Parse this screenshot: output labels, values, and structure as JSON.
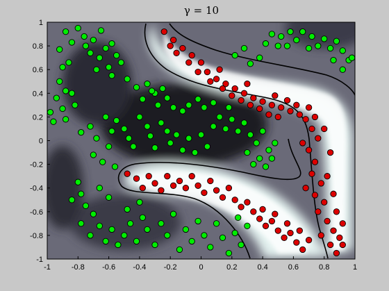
{
  "chart_data": {
    "type": "scatter",
    "title": "γ = 10",
    "xlabel": "",
    "ylabel": "",
    "xlim": [
      -1,
      1
    ],
    "ylim": [
      -1,
      1
    ],
    "xticks": [
      "-1",
      "-0.8",
      "-0.6",
      "-0.4",
      "-0.2",
      "0",
      "0.2",
      "0.4",
      "0.6",
      "0.8",
      "1"
    ],
    "yticks": [
      "1",
      "0.8",
      "0.6",
      "0.4",
      "0.2",
      "0",
      "-0.2",
      "-0.4",
      "-0.6",
      "-0.8",
      "-1"
    ],
    "grid": false,
    "legend": "none",
    "background": "decision-function shading (dark = green class, light = red class) with black decision boundary",
    "colors": {
      "class_green": "#00ee00",
      "class_red": "#dd0000",
      "edge": "#000000",
      "boundary": "#000000"
    },
    "series": [
      {
        "color": "#00ee00",
        "points": [
          [
            -0.92,
            0.77
          ],
          [
            -0.88,
            0.92
          ],
          [
            -0.84,
            0.83
          ],
          [
            -0.8,
            0.95
          ],
          [
            -0.76,
            0.88
          ],
          [
            -0.7,
            0.85
          ],
          [
            -0.65,
            0.93
          ],
          [
            -0.62,
            0.78
          ],
          [
            -0.58,
            0.82
          ],
          [
            -0.55,
            0.72
          ],
          [
            -0.52,
            0.66
          ],
          [
            -0.6,
            0.62
          ],
          [
            -0.66,
            0.7
          ],
          [
            -0.72,
            0.74
          ],
          [
            -0.68,
            0.6
          ],
          [
            -0.75,
            0.8
          ],
          [
            -0.9,
            0.62
          ],
          [
            -0.86,
            0.66
          ],
          [
            -0.92,
            0.5
          ],
          [
            -0.88,
            0.42
          ],
          [
            -0.94,
            0.36
          ],
          [
            -0.84,
            0.4
          ],
          [
            -0.82,
            0.3
          ],
          [
            -0.9,
            0.27
          ],
          [
            -0.98,
            0.24
          ],
          [
            -0.96,
            0.16
          ],
          [
            -0.88,
            0.18
          ],
          [
            -0.58,
            0.55
          ],
          [
            -0.48,
            0.52
          ],
          [
            -0.42,
            0.45
          ],
          [
            -0.35,
            0.48
          ],
          [
            -0.3,
            0.4
          ],
          [
            -0.38,
            0.35
          ],
          [
            -0.28,
            0.3
          ],
          [
            -0.22,
            0.36
          ],
          [
            -0.18,
            0.28
          ],
          [
            -0.12,
            0.25
          ],
          [
            -0.08,
            0.3
          ],
          [
            -0.02,
            0.35
          ],
          [
            0.02,
            0.28
          ],
          [
            -0.32,
            0.42
          ],
          [
            -0.25,
            0.44
          ],
          [
            -0.78,
            0.07
          ],
          [
            -0.72,
            0.12
          ],
          [
            -0.68,
            0.02
          ],
          [
            -0.62,
            0.2
          ],
          [
            -0.58,
            0.08
          ],
          [
            -0.55,
            0.17
          ],
          [
            -0.6,
            -0.05
          ],
          [
            -0.5,
            0.1
          ],
          [
            -0.47,
            0.02
          ],
          [
            -0.44,
            -0.05
          ],
          [
            -0.4,
            0.2
          ],
          [
            -0.35,
            0.12
          ],
          [
            -0.33,
            0.04
          ],
          [
            -0.3,
            -0.06
          ],
          [
            -0.26,
            0.15
          ],
          [
            -0.22,
            0.08
          ],
          [
            -0.2,
            -0.02
          ],
          [
            -0.16,
            0.05
          ],
          [
            -0.12,
            -0.08
          ],
          [
            -0.08,
            0.02
          ],
          [
            -0.04,
            -0.1
          ],
          [
            0.0,
            0.05
          ],
          [
            0.04,
            -0.05
          ],
          [
            0.08,
            0.12
          ],
          [
            0.12,
            0.2
          ],
          [
            0.16,
            0.1
          ],
          [
            0.2,
            0.18
          ],
          [
            0.24,
            0.08
          ],
          [
            0.28,
            0.15
          ],
          [
            0.32,
            0.05
          ],
          [
            0.36,
            -0.02
          ],
          [
            0.4,
            0.08
          ],
          [
            0.44,
            -0.08
          ],
          [
            0.48,
            -0.02
          ],
          [
            0.38,
            -0.15
          ],
          [
            0.34,
            -0.2
          ],
          [
            0.42,
            -0.22
          ],
          [
            0.46,
            -0.15
          ],
          [
            0.3,
            -0.1
          ],
          [
            0.18,
            0.28
          ],
          [
            0.08,
            0.32
          ],
          [
            -0.64,
            -0.18
          ],
          [
            -0.56,
            -0.22
          ],
          [
            -0.7,
            -0.12
          ],
          [
            -0.8,
            -0.35
          ],
          [
            -0.78,
            -0.45
          ],
          [
            -0.84,
            -0.5
          ],
          [
            -0.75,
            -0.55
          ],
          [
            -0.7,
            -0.62
          ],
          [
            -0.78,
            -0.7
          ],
          [
            -0.72,
            -0.8
          ],
          [
            -0.66,
            -0.72
          ],
          [
            -0.62,
            -0.85
          ],
          [
            -0.58,
            -0.75
          ],
          [
            -0.54,
            -0.88
          ],
          [
            -0.5,
            -0.8
          ],
          [
            -0.46,
            -0.7
          ],
          [
            -0.42,
            -0.85
          ],
          [
            -0.38,
            -0.65
          ],
          [
            -0.35,
            -0.75
          ],
          [
            -0.3,
            -0.88
          ],
          [
            -0.26,
            -0.7
          ],
          [
            -0.22,
            -0.8
          ],
          [
            -0.18,
            -0.62
          ],
          [
            -0.14,
            -0.92
          ],
          [
            -0.1,
            -0.75
          ],
          [
            -0.06,
            -0.85
          ],
          [
            -0.02,
            -0.68
          ],
          [
            0.02,
            -0.8
          ],
          [
            0.06,
            -0.9
          ],
          [
            0.1,
            -0.7
          ],
          [
            0.14,
            -0.82
          ],
          [
            0.18,
            -0.95
          ],
          [
            0.22,
            -0.78
          ],
          [
            0.26,
            -0.88
          ],
          [
            0.3,
            -0.72
          ],
          [
            0.24,
            -0.65
          ],
          [
            -0.48,
            -0.58
          ],
          [
            -0.4,
            -0.52
          ],
          [
            -0.66,
            -0.4
          ],
          [
            -0.6,
            -0.48
          ],
          [
            0.22,
            0.72
          ],
          [
            0.28,
            0.78
          ],
          [
            0.32,
            0.65
          ],
          [
            0.38,
            0.7
          ],
          [
            0.46,
            0.9
          ],
          [
            0.52,
            0.88
          ],
          [
            0.56,
            0.8
          ],
          [
            0.62,
            0.85
          ],
          [
            0.66,
            0.92
          ],
          [
            0.72,
            0.88
          ],
          [
            0.76,
            0.8
          ],
          [
            0.8,
            0.86
          ],
          [
            0.84,
            0.78
          ],
          [
            0.88,
            0.84
          ],
          [
            0.92,
            0.76
          ],
          [
            0.96,
            0.68
          ],
          [
            0.92,
            0.6
          ],
          [
            0.98,
            0.7
          ],
          [
            0.86,
            0.68
          ],
          [
            0.7,
            0.78
          ],
          [
            0.58,
            0.92
          ],
          [
            0.5,
            0.8
          ],
          [
            0.42,
            0.82
          ]
        ]
      },
      {
        "color": "#dd0000",
        "points": [
          [
            -0.24,
            0.92
          ],
          [
            -0.18,
            0.85
          ],
          [
            -0.12,
            0.78
          ],
          [
            -0.06,
            0.72
          ],
          [
            0.0,
            0.66
          ],
          [
            0.04,
            0.58
          ],
          [
            0.1,
            0.52
          ],
          [
            0.16,
            0.48
          ],
          [
            0.22,
            0.44
          ],
          [
            0.28,
            0.4
          ],
          [
            0.34,
            0.36
          ],
          [
            0.4,
            0.33
          ],
          [
            0.46,
            0.3
          ],
          [
            0.52,
            0.28
          ],
          [
            0.58,
            0.25
          ],
          [
            0.64,
            0.22
          ],
          [
            -0.16,
            0.74
          ],
          [
            -0.08,
            0.66
          ],
          [
            -0.02,
            0.58
          ],
          [
            0.06,
            0.5
          ],
          [
            0.14,
            0.44
          ],
          [
            0.2,
            0.38
          ],
          [
            0.26,
            0.34
          ],
          [
            0.32,
            0.3
          ],
          [
            0.38,
            0.27
          ],
          [
            0.44,
            0.22
          ],
          [
            0.5,
            0.2
          ],
          [
            -0.2,
            0.8
          ],
          [
            0.12,
            0.6
          ],
          [
            0.3,
            0.48
          ],
          [
            0.48,
            0.38
          ],
          [
            0.56,
            0.34
          ],
          [
            0.62,
            0.3
          ],
          [
            0.7,
            0.28
          ],
          [
            0.74,
            0.2
          ],
          [
            0.72,
            0.1
          ],
          [
            0.76,
            0.02
          ],
          [
            0.7,
            -0.08
          ],
          [
            0.74,
            -0.18
          ],
          [
            0.72,
            -0.28
          ],
          [
            0.78,
            -0.36
          ],
          [
            0.74,
            -0.46
          ],
          [
            0.8,
            -0.52
          ],
          [
            0.76,
            -0.6
          ],
          [
            0.82,
            -0.68
          ],
          [
            0.86,
            -0.76
          ],
          [
            0.9,
            -0.82
          ],
          [
            0.84,
            -0.88
          ],
          [
            0.88,
            -0.95
          ],
          [
            0.92,
            -0.88
          ],
          [
            0.8,
            0.1
          ],
          [
            0.84,
            -0.1
          ],
          [
            0.82,
            -0.3
          ],
          [
            0.86,
            -0.45
          ],
          [
            0.88,
            -0.6
          ],
          [
            0.92,
            -0.7
          ],
          [
            0.78,
            -0.8
          ],
          [
            0.68,
            0.18
          ],
          [
            0.66,
            -0.02
          ],
          [
            0.68,
            -0.4
          ],
          [
            -0.48,
            -0.28
          ],
          [
            -0.42,
            -0.32
          ],
          [
            -0.38,
            -0.4
          ],
          [
            -0.34,
            -0.3
          ],
          [
            -0.3,
            -0.36
          ],
          [
            -0.26,
            -0.42
          ],
          [
            -0.22,
            -0.3
          ],
          [
            -0.18,
            -0.38
          ],
          [
            -0.14,
            -0.34
          ],
          [
            -0.1,
            -0.4
          ],
          [
            -0.06,
            -0.3
          ],
          [
            -0.02,
            -0.38
          ],
          [
            0.02,
            -0.44
          ],
          [
            0.06,
            -0.34
          ],
          [
            0.1,
            -0.42
          ],
          [
            0.14,
            -0.48
          ],
          [
            0.18,
            -0.4
          ],
          [
            0.22,
            -0.5
          ],
          [
            0.26,
            -0.56
          ],
          [
            0.3,
            -0.52
          ],
          [
            0.34,
            -0.6
          ],
          [
            0.38,
            -0.66
          ],
          [
            0.42,
            -0.72
          ],
          [
            0.46,
            -0.68
          ],
          [
            0.5,
            -0.76
          ],
          [
            0.54,
            -0.82
          ],
          [
            0.58,
            -0.78
          ],
          [
            0.62,
            -0.86
          ],
          [
            0.66,
            -0.92
          ],
          [
            0.4,
            -0.58
          ],
          [
            0.48,
            -0.62
          ],
          [
            0.56,
            -0.7
          ],
          [
            0.64,
            -0.76
          ],
          [
            0.7,
            -0.84
          ]
        ]
      }
    ]
  }
}
